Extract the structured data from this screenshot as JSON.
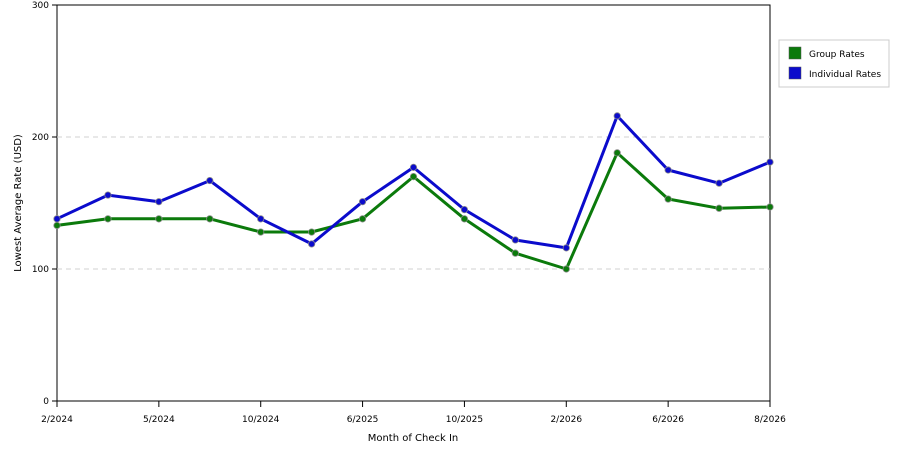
{
  "chart_data": {
    "type": "line",
    "title": "",
    "xlabel": "Month of Check In",
    "ylabel": "Lowest Average Rate (USD)",
    "ylim": [
      0,
      300
    ],
    "yticks": [
      0,
      100,
      200,
      300
    ],
    "x_tick_labels": [
      "2/2024",
      "5/2024",
      "10/2024",
      "6/2025",
      "10/2025",
      "2/2026",
      "6/2026",
      "8/2026"
    ],
    "x_tick_positions": [
      0,
      2,
      4,
      6,
      8,
      10,
      12,
      14
    ],
    "grid": "horizontal dashed",
    "legend_position": "right",
    "series": [
      {
        "name": "Group Rates",
        "color": "#0b7a0b",
        "values": [
          133,
          138,
          138,
          138,
          128,
          128,
          138,
          170,
          138,
          112,
          100,
          188,
          153,
          146,
          147
        ]
      },
      {
        "name": "Individual Rates",
        "color": "#0b0bcc",
        "values": [
          138,
          156,
          151,
          167,
          138,
          119,
          151,
          177,
          145,
          122,
          116,
          216,
          175,
          165,
          181
        ]
      }
    ]
  }
}
